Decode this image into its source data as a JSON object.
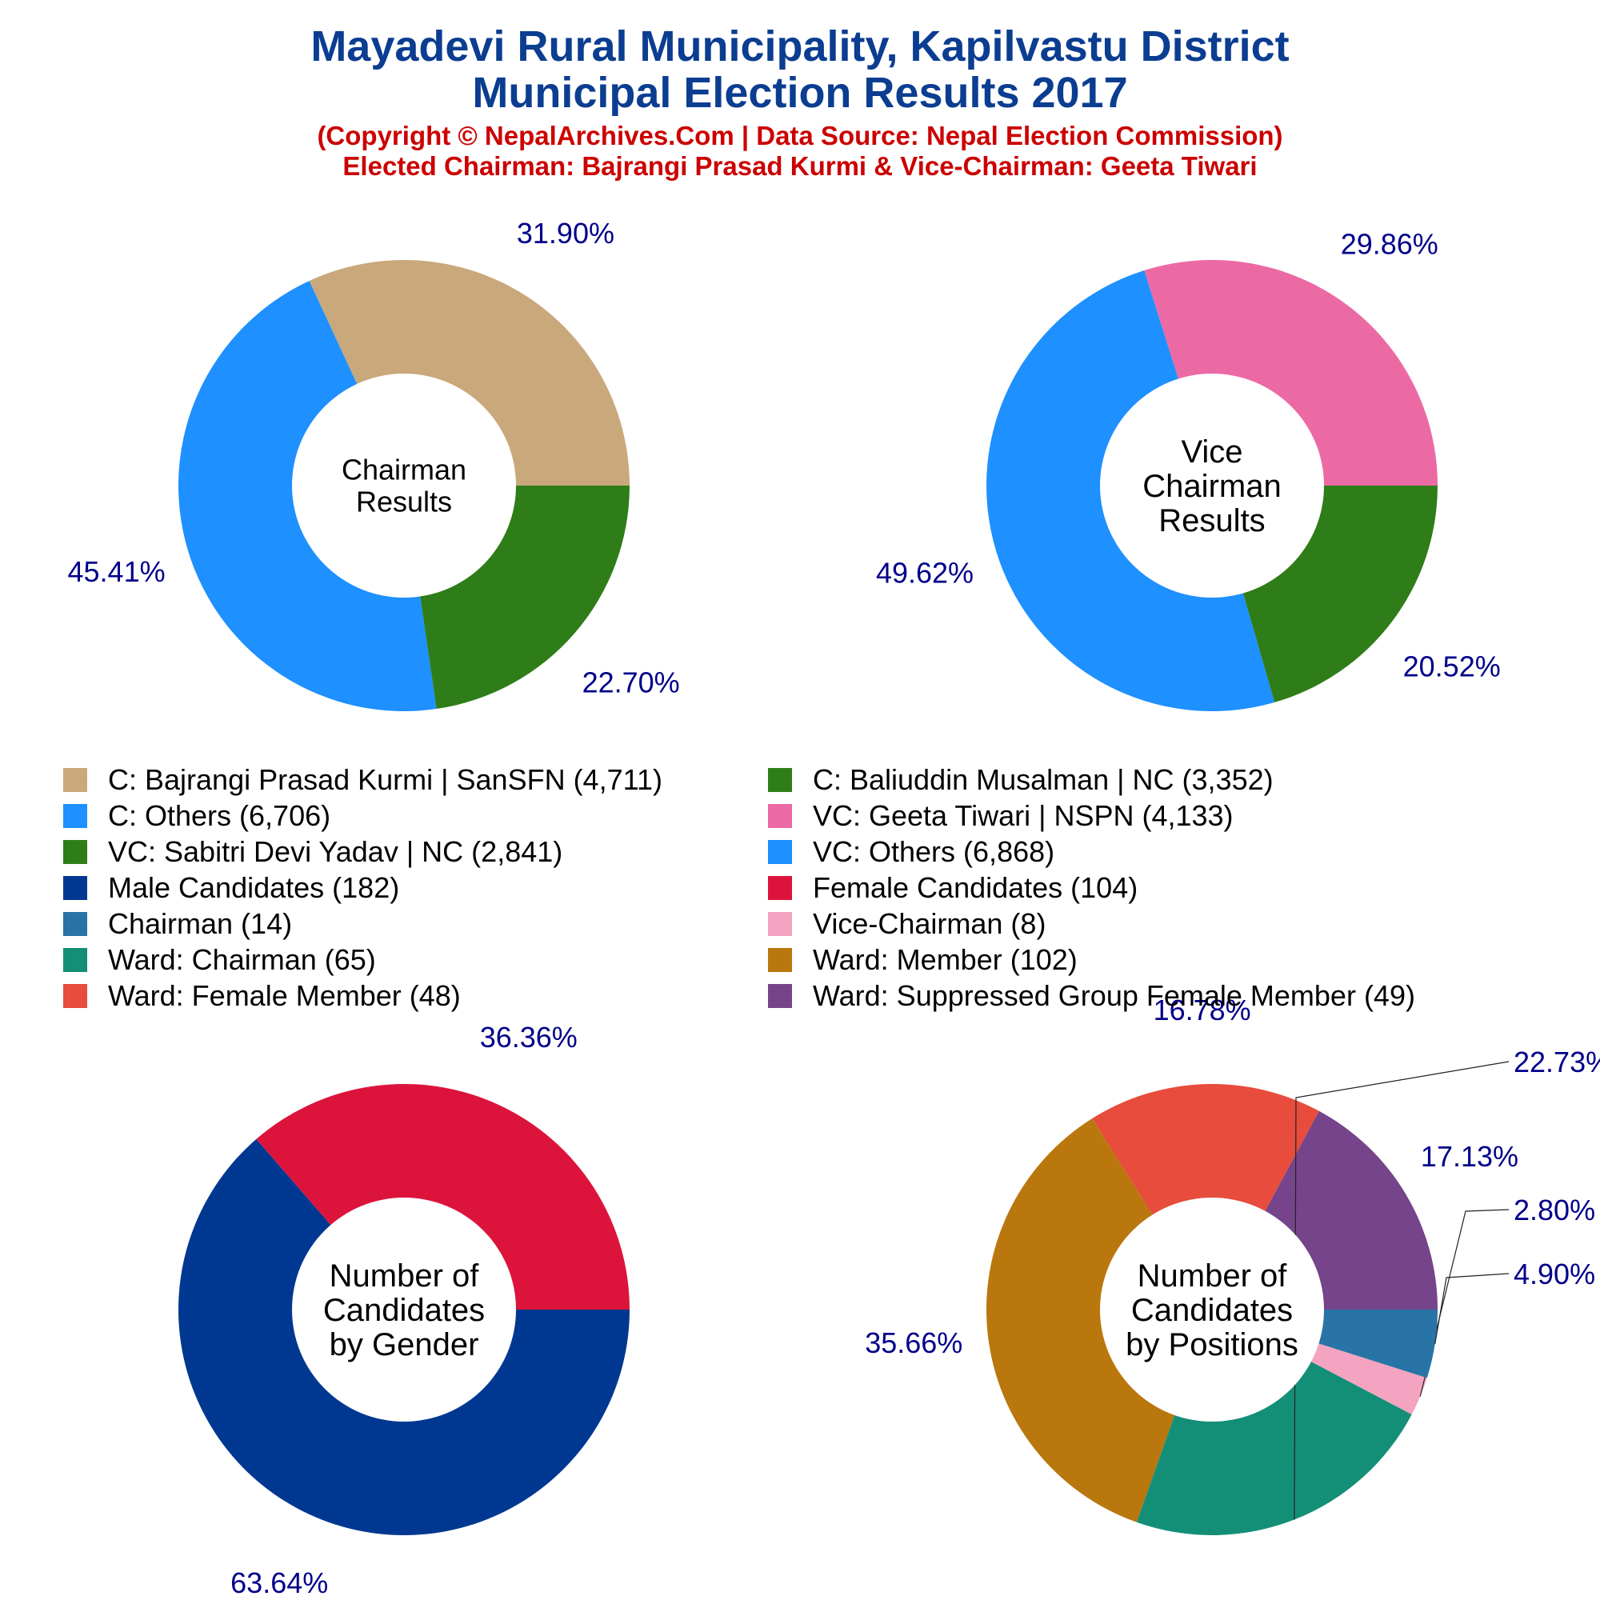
{
  "header": {
    "title_line1": "Mayadevi Rural Municipality, Kapilvastu District",
    "title_line2": "Municipal Election Results 2017",
    "subtitle_line1": "(Copyright © NepalArchives.Com | Data Source: Nepal Election Commission)",
    "subtitle_line2": "Elected Chairman: Bajrangi Prasad Kurmi & Vice-Chairman: Geeta Tiwari"
  },
  "colors": {
    "title": "#0b3d91",
    "subtitle": "#cc0000",
    "percent_label": "#00008b"
  },
  "chart_data": [
    {
      "type": "pie",
      "variant": "donut",
      "center_label": [
        "Chairman",
        "Results"
      ],
      "slices": [
        {
          "label": "C: Bajrangi Prasad Kurmi | SanSFN",
          "value": 4711,
          "percent": "31.90%",
          "color": "#c9a87c"
        },
        {
          "label": "C: Others",
          "value": 6706,
          "percent": "45.41%",
          "color": "#1e90ff"
        },
        {
          "label": "C: Baliuddin Musalman | NC",
          "value": 3352,
          "percent": "22.70%",
          "color": "#2e7d18"
        }
      ]
    },
    {
      "type": "pie",
      "variant": "donut",
      "center_label": [
        "Vice",
        "Chairman",
        "Results"
      ],
      "slices": [
        {
          "label": "VC: Geeta Tiwari | NSPN",
          "value": 4133,
          "percent": "29.86%",
          "color": "#ec6aa4"
        },
        {
          "label": "VC: Others",
          "value": 6868,
          "percent": "49.62%",
          "color": "#1e90ff"
        },
        {
          "label": "VC: Sabitri Devi Yadav | NC",
          "value": 2841,
          "percent": "20.52%",
          "color": "#2e7d18"
        }
      ]
    },
    {
      "type": "pie",
      "variant": "donut",
      "center_label": [
        "Number of",
        "Candidates",
        "by Gender"
      ],
      "slices": [
        {
          "label": "Female Candidates",
          "value": 104,
          "percent": "36.36%",
          "color": "#dc143c"
        },
        {
          "label": "Male Candidates",
          "value": 182,
          "percent": "63.64%",
          "color": "#003891"
        }
      ]
    },
    {
      "type": "pie",
      "variant": "donut",
      "center_label": [
        "Number of",
        "Candidates",
        "by Positions"
      ],
      "slices": [
        {
          "label": "Ward: Suppressed Group Female Member",
          "value": 49,
          "percent": "17.13%",
          "color": "#76448a"
        },
        {
          "label": "Ward: Female Member",
          "value": 48,
          "percent": "16.78%",
          "color": "#e74c3c"
        },
        {
          "label": "Ward: Member",
          "value": 102,
          "percent": "35.66%",
          "color": "#b9770e"
        },
        {
          "label": "Ward: Chairman",
          "value": 65,
          "percent": "22.73%",
          "color": "#148f77"
        },
        {
          "label": "Vice-Chairman",
          "value": 8,
          "percent": "2.80%",
          "color": "#f4a4c0"
        },
        {
          "label": "Chairman",
          "value": 14,
          "percent": "4.90%",
          "color": "#2874a6"
        }
      ]
    }
  ],
  "legend": [
    {
      "label": "C: Bajrangi Prasad Kurmi | SanSFN (4,711)",
      "color": "#c9a87c"
    },
    {
      "label": "C: Baliuddin Musalman | NC (3,352)",
      "color": "#2e7d18"
    },
    {
      "label": "C: Others (6,706)",
      "color": "#1e90ff"
    },
    {
      "label": "VC: Geeta Tiwari | NSPN (4,133)",
      "color": "#ec6aa4"
    },
    {
      "label": "VC: Sabitri Devi Yadav | NC (2,841)",
      "color": "#2e7d18"
    },
    {
      "label": "VC: Others (6,868)",
      "color": "#1e90ff"
    },
    {
      "label": "Male Candidates (182)",
      "color": "#003891"
    },
    {
      "label": "Female Candidates (104)",
      "color": "#dc143c"
    },
    {
      "label": "Chairman (14)",
      "color": "#2874a6"
    },
    {
      "label": "Vice-Chairman (8)",
      "color": "#f4a4c0"
    },
    {
      "label": "Ward: Chairman (65)",
      "color": "#148f77"
    },
    {
      "label": "Ward: Member (102)",
      "color": "#b9770e"
    },
    {
      "label": "Ward: Female Member (48)",
      "color": "#e74c3c"
    },
    {
      "label": "Ward: Suppressed Group Female Member (49)",
      "color": "#76448a"
    }
  ]
}
